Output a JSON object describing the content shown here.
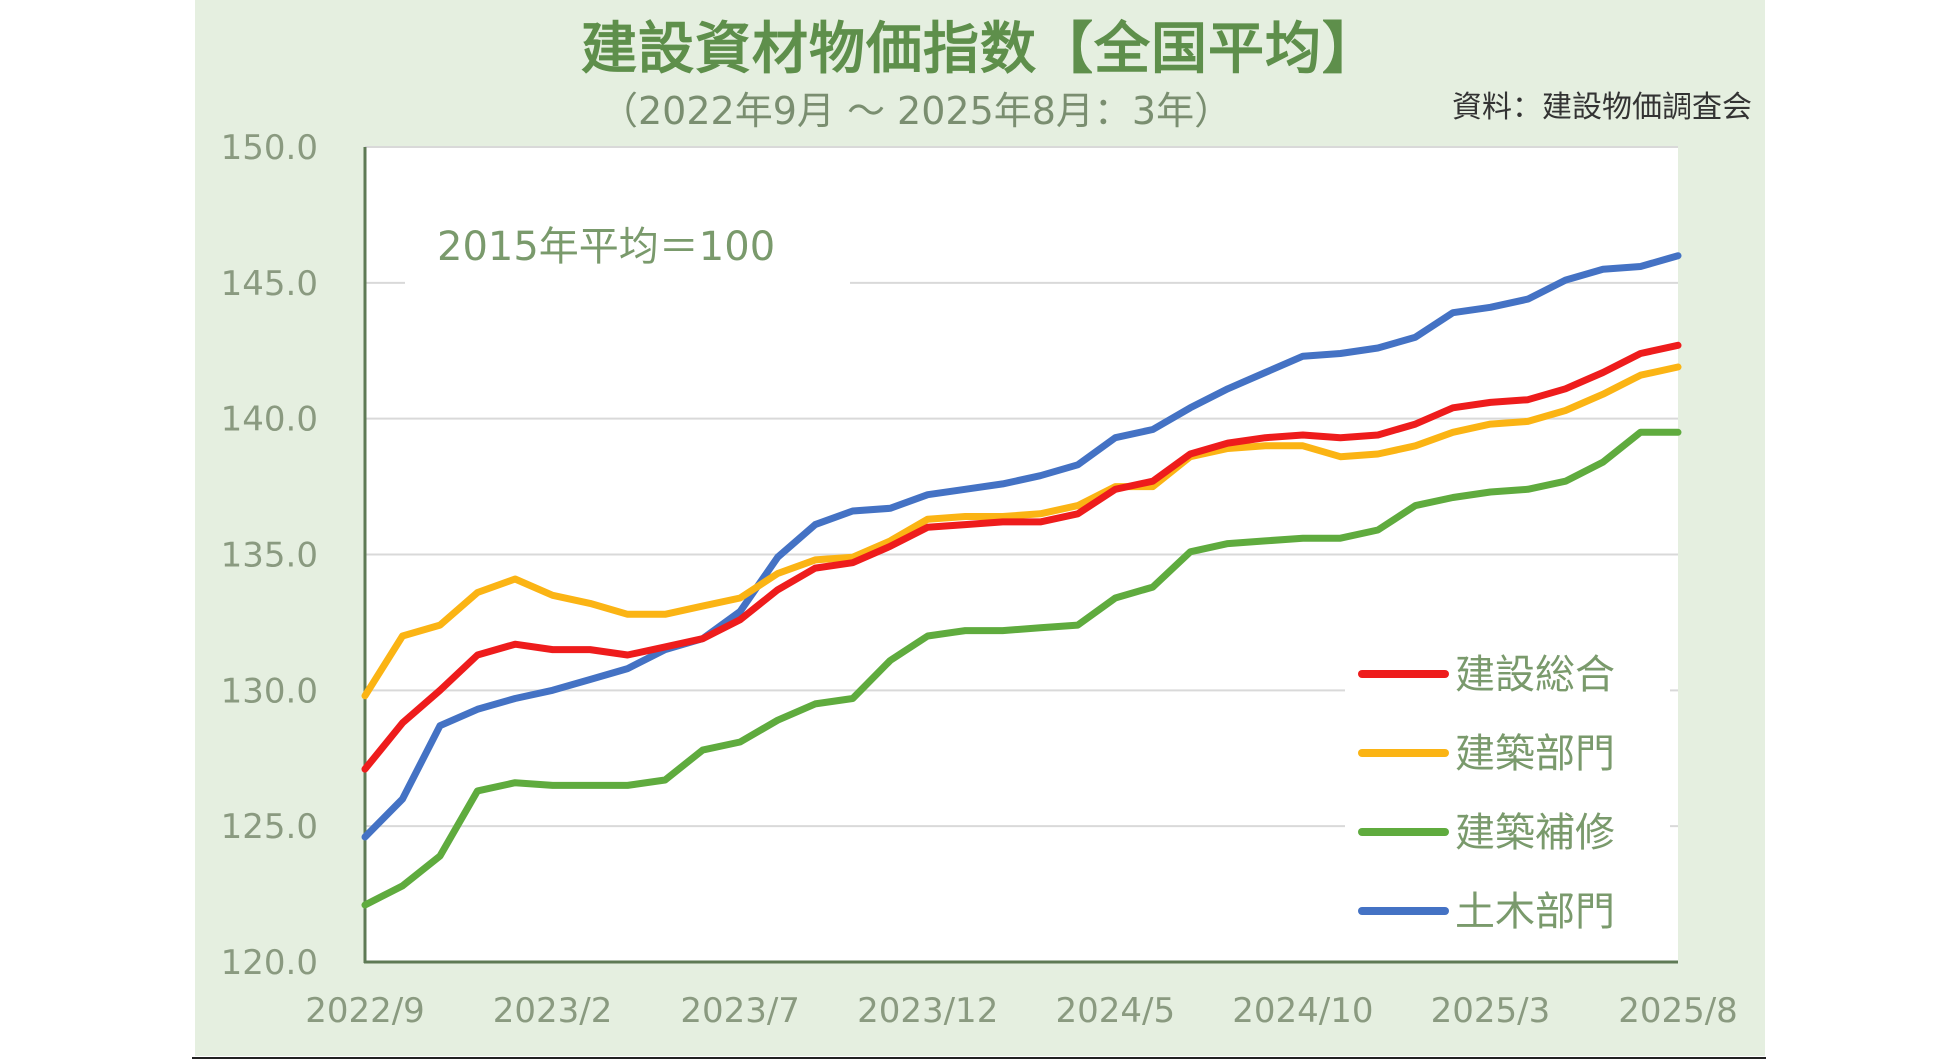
{
  "colors": {
    "background": "#e5efe0",
    "plot_area": "#ffffff",
    "title": "#5e8f4b",
    "grid": "#d9d9d9"
  },
  "chart_data": {
    "type": "line",
    "title": "建設資材物価指数【全国平均】",
    "subtitle": "（2022年9月 〜 2025年8月：3年）",
    "source": "資料：建設物価調査会",
    "note": "2015年平均＝100",
    "ylim": [
      120,
      150
    ],
    "y_ticks": [
      "120.0",
      "125.0",
      "130.0",
      "135.0",
      "140.0",
      "145.0",
      "150.0"
    ],
    "x_tick_labels": [
      "2022/9",
      "2023/2",
      "2023/7",
      "2023/12",
      "2024/5",
      "2024/10",
      "2025/3",
      "2025/8"
    ],
    "grid": "horizontal",
    "legend_position": "bottom-right",
    "x": [
      "2022/9",
      "2022/10",
      "2022/11",
      "2022/12",
      "2023/1",
      "2023/2",
      "2023/3",
      "2023/4",
      "2023/5",
      "2023/6",
      "2023/7",
      "2023/8",
      "2023/9",
      "2023/10",
      "2023/11",
      "2023/12",
      "2024/1",
      "2024/2",
      "2024/3",
      "2024/4",
      "2024/5",
      "2024/6",
      "2024/7",
      "2024/8",
      "2024/9",
      "2024/10",
      "2024/11",
      "2024/12",
      "2025/1",
      "2025/2",
      "2025/3",
      "2025/4",
      "2025/5",
      "2025/6",
      "2025/7",
      "2025/8"
    ],
    "series": [
      {
        "name": "建設総合",
        "color": "#ee1c1c",
        "values": [
          127.1,
          128.8,
          130.0,
          131.3,
          131.7,
          131.5,
          131.5,
          131.3,
          131.6,
          131.9,
          132.6,
          133.7,
          134.5,
          134.7,
          135.3,
          136.0,
          136.1,
          136.2,
          136.2,
          136.5,
          137.4,
          137.7,
          138.7,
          139.1,
          139.3,
          139.4,
          139.3,
          139.4,
          139.8,
          140.4,
          140.6,
          140.7,
          141.1,
          141.7,
          142.4,
          142.7
        ]
      },
      {
        "name": "建築部門",
        "color": "#fbb414",
        "values": [
          129.8,
          132.0,
          132.4,
          133.6,
          134.1,
          133.5,
          133.2,
          132.8,
          132.8,
          133.1,
          133.4,
          134.3,
          134.8,
          134.9,
          135.5,
          136.3,
          136.4,
          136.4,
          136.5,
          136.8,
          137.5,
          137.5,
          138.6,
          138.9,
          139.0,
          139.0,
          138.6,
          138.7,
          139.0,
          139.5,
          139.8,
          139.9,
          140.3,
          140.9,
          141.6,
          141.9
        ]
      },
      {
        "name": "建築補修",
        "color": "#5fab3e",
        "values": [
          122.1,
          122.8,
          123.9,
          126.3,
          126.6,
          126.5,
          126.5,
          126.5,
          126.7,
          127.8,
          128.1,
          128.9,
          129.5,
          129.7,
          131.1,
          132.0,
          132.2,
          132.2,
          132.3,
          132.4,
          133.4,
          133.8,
          135.1,
          135.4,
          135.5,
          135.6,
          135.6,
          135.9,
          136.8,
          137.1,
          137.3,
          137.4,
          137.7,
          138.4,
          139.5,
          139.5
        ]
      },
      {
        "name": "土木部門",
        "color": "#4472c4",
        "values": [
          124.6,
          126.0,
          128.7,
          129.3,
          129.7,
          130.0,
          130.4,
          130.8,
          131.5,
          131.9,
          132.9,
          134.9,
          136.1,
          136.6,
          136.7,
          137.2,
          137.4,
          137.6,
          137.9,
          138.3,
          139.3,
          139.6,
          140.4,
          141.1,
          141.7,
          142.3,
          142.4,
          142.6,
          143.0,
          143.9,
          144.1,
          144.4,
          145.1,
          145.5,
          145.6,
          146.0
        ]
      }
    ]
  }
}
